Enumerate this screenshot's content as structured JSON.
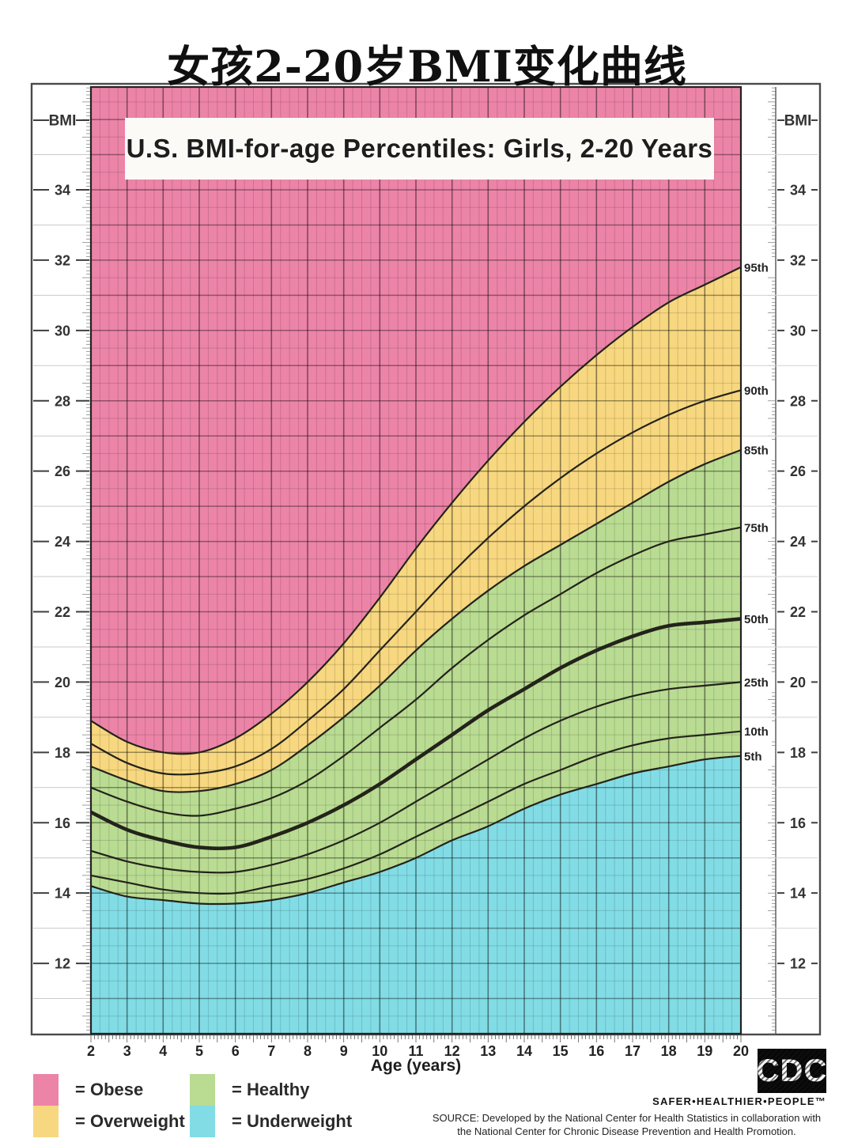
{
  "page": {
    "title": "女孩2-20岁BMI变化曲线"
  },
  "chart_data": {
    "type": "area",
    "title": "U.S. BMI-for-age Percentiles: Girls, 2-20 Years",
    "xlabel": "Age (years)",
    "ylabel": "BMI",
    "xlim": [
      2,
      20
    ],
    "ylim": [
      10,
      37
    ],
    "grid": {
      "x_minor_step": 0.25,
      "x_major_step": 1,
      "y_minor_step": 0.5,
      "y_major_step": 1
    },
    "x_ticks": [
      2,
      3,
      4,
      5,
      6,
      7,
      8,
      9,
      10,
      11,
      12,
      13,
      14,
      15,
      16,
      17,
      18,
      19,
      20
    ],
    "y_tick_labels": [
      34,
      32,
      30,
      28,
      26,
      24,
      22,
      20,
      18,
      16,
      14,
      12
    ],
    "x": [
      2,
      3,
      4,
      5,
      6,
      7,
      8,
      9,
      10,
      11,
      12,
      13,
      14,
      15,
      16,
      17,
      18,
      19,
      20
    ],
    "series": [
      {
        "name": "95th",
        "values": [
          18.9,
          18.3,
          18.0,
          18.0,
          18.4,
          19.1,
          20.0,
          21.1,
          22.4,
          23.8,
          25.1,
          26.3,
          27.4,
          28.4,
          29.3,
          30.1,
          30.8,
          31.3,
          31.8
        ]
      },
      {
        "name": "90th",
        "values": [
          18.25,
          17.7,
          17.4,
          17.4,
          17.6,
          18.1,
          18.9,
          19.8,
          20.9,
          22.0,
          23.1,
          24.1,
          25.0,
          25.8,
          26.5,
          27.1,
          27.6,
          28.0,
          28.3
        ]
      },
      {
        "name": "85th",
        "values": [
          17.6,
          17.2,
          16.9,
          16.9,
          17.1,
          17.5,
          18.2,
          19.0,
          19.9,
          20.9,
          21.8,
          22.6,
          23.3,
          23.9,
          24.5,
          25.1,
          25.7,
          26.2,
          26.6
        ]
      },
      {
        "name": "75th",
        "values": [
          17.0,
          16.6,
          16.3,
          16.2,
          16.4,
          16.7,
          17.2,
          17.9,
          18.7,
          19.5,
          20.4,
          21.2,
          21.9,
          22.5,
          23.1,
          23.6,
          24.0,
          24.2,
          24.4
        ]
      },
      {
        "name": "50th",
        "values": [
          16.3,
          15.8,
          15.5,
          15.3,
          15.3,
          15.6,
          16.0,
          16.5,
          17.1,
          17.8,
          18.5,
          19.2,
          19.8,
          20.4,
          20.9,
          21.3,
          21.6,
          21.7,
          21.8
        ]
      },
      {
        "name": "25th",
        "values": [
          15.2,
          14.9,
          14.7,
          14.6,
          14.6,
          14.8,
          15.1,
          15.5,
          16.0,
          16.6,
          17.2,
          17.8,
          18.4,
          18.9,
          19.3,
          19.6,
          19.8,
          19.9,
          20.0
        ]
      },
      {
        "name": "10th",
        "values": [
          14.5,
          14.3,
          14.1,
          14.0,
          14.0,
          14.2,
          14.4,
          14.7,
          15.1,
          15.6,
          16.1,
          16.6,
          17.1,
          17.5,
          17.9,
          18.2,
          18.4,
          18.5,
          18.6
        ]
      },
      {
        "name": "5th",
        "values": [
          14.2,
          13.9,
          13.8,
          13.7,
          13.7,
          13.8,
          14.0,
          14.3,
          14.6,
          15.0,
          15.5,
          15.9,
          16.4,
          16.8,
          17.1,
          17.4,
          17.6,
          17.8,
          17.9
        ]
      }
    ],
    "regions": [
      {
        "name": "Obese",
        "color": "#ec84a8",
        "below": null
      },
      {
        "name": "Overweight",
        "color": "#f7d77f",
        "below": "95th"
      },
      {
        "name": "Healthy",
        "color": "#b9db92",
        "below": "85th"
      },
      {
        "name": "Underweight",
        "color": "#82dce5",
        "below": "5th"
      }
    ],
    "legend_position": "bottom-left"
  },
  "legend": {
    "items": [
      {
        "label": "= Obese",
        "color": "#ec84a8"
      },
      {
        "label": "= Overweight",
        "color": "#f7d77f"
      },
      {
        "label": "= Healthy",
        "color": "#b9db92"
      },
      {
        "label": "= Underweight",
        "color": "#82dce5"
      }
    ]
  },
  "footer": {
    "cdc_letters": "CDC",
    "tagline": "SAFER•HEALTHIER•PEOPLE™",
    "source_line1": "SOURCE: Developed by the National Center for Health Statistics in collaboration with",
    "source_line2": "the National Center for Chronic Disease Prevention and Health Promotion."
  }
}
